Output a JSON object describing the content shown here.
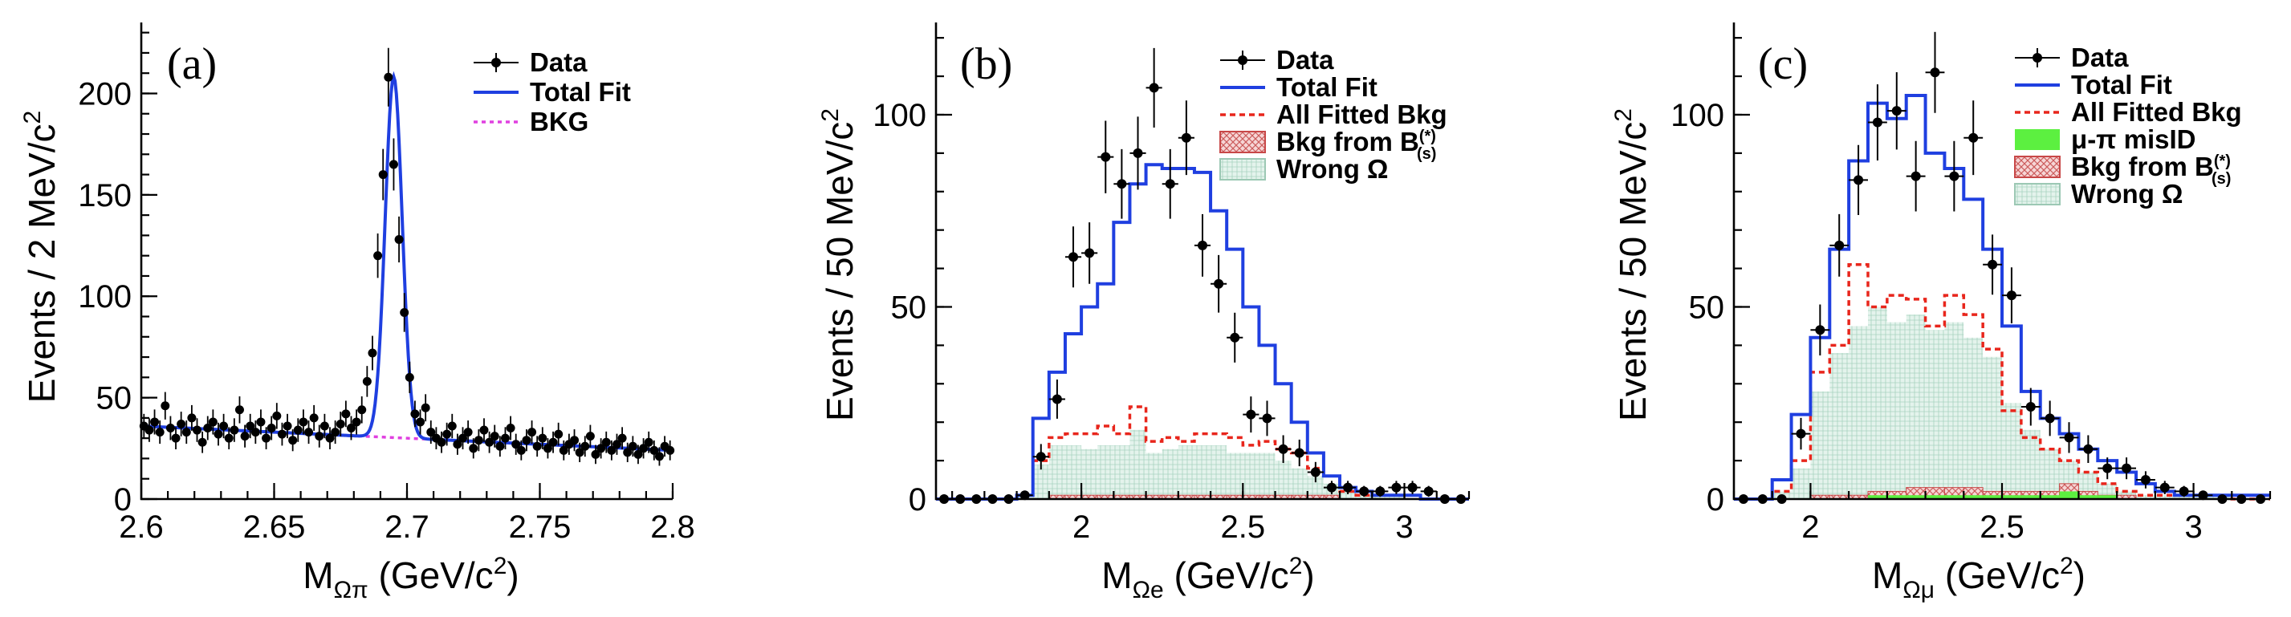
{
  "colors": {
    "data": "#000000",
    "total_fit": "#1f3fe0",
    "bkg_a": "#e040e0",
    "all_fitted": "#e8261c",
    "bkg_b_line": "#c84848",
    "bkg_b_fill": "#f3c8c8",
    "wrong_line": "#9cc8b4",
    "wrong_fill": "#dcefe6",
    "misid": "#5cf040"
  },
  "chart_data": [
    {
      "id": "a",
      "type": "scatter",
      "panel_label": "(a)",
      "xlabel_main": "M",
      "xlabel_sub": "Ωπ",
      "xlabel_rest": "  (GeV/c",
      "xlabel_sup": "2",
      "xlabel_close": ")",
      "ylabel": "Events / 2 MeV/c",
      "ylabel_sup": "2",
      "xlim": [
        2.6,
        2.8
      ],
      "ylim": [
        0,
        235
      ],
      "xticks": [
        2.6,
        2.65,
        2.7,
        2.75,
        2.8
      ],
      "xtick_labels": [
        "2.6",
        "2.65",
        "2.7",
        "2.75",
        "2.8"
      ],
      "yticks": [
        0,
        50,
        100,
        150,
        200
      ],
      "ytick_labels": [
        "0",
        "50",
        "100",
        "150",
        "200"
      ],
      "legend": [
        {
          "key": "data",
          "label": "Data"
        },
        {
          "key": "total",
          "label": "Total Fit"
        },
        {
          "key": "bkg",
          "label": "BKG"
        }
      ],
      "data_x0": 2.601,
      "data_dx": 0.002,
      "data_y": [
        36,
        34,
        38,
        33,
        46,
        35,
        30,
        37,
        33,
        40,
        34,
        28,
        35,
        38,
        32,
        36,
        30,
        34,
        44,
        31,
        36,
        33,
        38,
        30,
        35,
        41,
        32,
        36,
        29,
        34,
        38,
        33,
        40,
        31,
        36,
        30,
        33,
        37,
        42,
        35,
        38,
        44,
        58,
        72,
        120,
        160,
        208,
        165,
        128,
        92,
        60,
        42,
        38,
        45,
        33,
        30,
        28,
        32,
        36,
        27,
        30,
        33,
        25,
        29,
        34,
        28,
        31,
        26,
        30,
        35,
        27,
        24,
        29,
        33,
        26,
        30,
        25,
        28,
        32,
        24,
        27,
        29,
        23,
        26,
        31,
        22,
        25,
        28,
        24,
        27,
        30,
        23,
        26,
        22,
        25,
        28,
        24,
        21,
        26,
        24
      ],
      "fit": {
        "bkg_left": 36,
        "bkg_right": 24,
        "peak_mean": 2.695,
        "peak_amp": 178,
        "peak_sigma": 0.0032
      }
    },
    {
      "id": "b",
      "type": "histogram",
      "panel_label": "(b)",
      "xlabel_main": "M",
      "xlabel_sub": "Ωe",
      "xlabel_rest": " (GeV/c",
      "xlabel_sup": "2",
      "xlabel_close": ")",
      "ylabel": "Events / 50 MeV/c",
      "ylabel_sup": "2",
      "xlim": [
        1.55,
        3.2
      ],
      "ylim": [
        0,
        124
      ],
      "xticks": [
        2,
        2.5,
        3
      ],
      "xtick_labels": [
        "2",
        "2.5",
        "3"
      ],
      "yticks": [
        0,
        50,
        100
      ],
      "ytick_labels": [
        "0",
        "50",
        "100"
      ],
      "legend": [
        {
          "key": "data",
          "label": "Data"
        },
        {
          "key": "total",
          "label": "Total Fit"
        },
        {
          "key": "allbkg",
          "label": "All Fitted Bkg"
        },
        {
          "key": "bbkg",
          "label": "Bkg from B",
          "sup": "(*)",
          "sub": "(s)"
        },
        {
          "key": "wrong",
          "label": "Wrong Ω"
        }
      ],
      "bin_x0": 1.55,
      "bin_w": 0.05,
      "data_y": [
        0,
        0,
        0,
        0,
        0,
        1,
        11,
        26,
        63,
        64,
        89,
        82,
        90,
        107,
        82,
        94,
        66,
        56,
        42,
        22,
        21,
        13,
        12,
        7,
        3,
        3,
        2,
        2,
        3,
        3,
        2,
        0,
        0
      ],
      "total_fit": [
        0,
        0,
        0,
        0,
        0,
        1,
        21,
        33,
        43,
        50,
        56,
        72,
        82,
        87,
        86,
        86,
        85,
        75,
        65,
        50,
        40,
        30,
        20,
        12,
        6,
        3,
        2,
        1,
        1,
        1,
        0,
        0,
        0
      ],
      "all_bkg": [
        0,
        0,
        0,
        0,
        0,
        1,
        10,
        16,
        17,
        17,
        19,
        17,
        24,
        15,
        16,
        15,
        17,
        17,
        16,
        14,
        15,
        13,
        12,
        8,
        6,
        2,
        1,
        1,
        1,
        1,
        0,
        0,
        0
      ],
      "bkg_b": [
        0,
        0,
        0,
        0,
        0,
        0,
        0,
        1,
        1,
        1,
        1,
        1,
        1,
        1,
        1,
        1,
        1,
        1,
        1,
        1,
        1,
        1,
        1,
        1,
        1,
        0,
        0,
        0,
        0,
        0,
        0,
        0,
        0
      ],
      "wrong": [
        0,
        0,
        0,
        0,
        0,
        1,
        9,
        14,
        14,
        13,
        14,
        14,
        18,
        12,
        13,
        14,
        14,
        14,
        12,
        12,
        12,
        10,
        8,
        6,
        4,
        2,
        1,
        1,
        1,
        0,
        0,
        0,
        0
      ]
    },
    {
      "id": "c",
      "type": "histogram",
      "panel_label": "(c)",
      "xlabel_main": "M",
      "xlabel_sub": "Ωμ",
      "xlabel_rest": " (GeV/c",
      "xlabel_sup": "2",
      "xlabel_close": ")",
      "ylabel": "Events / 50 MeV/c",
      "ylabel_sup": "2",
      "xlim": [
        1.8,
        3.2
      ],
      "ylim": [
        0,
        124
      ],
      "xticks": [
        2,
        2.5,
        3
      ],
      "xtick_labels": [
        "2",
        "2.5",
        "3"
      ],
      "yticks": [
        0,
        50,
        100
      ],
      "ytick_labels": [
        "0",
        "50",
        "100"
      ],
      "legend": [
        {
          "key": "data",
          "label": "Data"
        },
        {
          "key": "total",
          "label": "Total Fit"
        },
        {
          "key": "allbkg",
          "label": "All Fitted Bkg"
        },
        {
          "key": "misid",
          "label": "μ-π misID"
        },
        {
          "key": "bbkg",
          "label": "Bkg from B",
          "sup": "(*)",
          "sub": "(s)"
        },
        {
          "key": "wrong",
          "label": "Wrong Ω"
        }
      ],
      "bin_x0": 1.8,
      "bin_w": 0.05,
      "data_y": [
        0,
        0,
        0,
        17,
        44,
        66,
        83,
        98,
        101,
        84,
        111,
        84,
        94,
        61,
        53,
        24,
        21,
        16,
        13,
        8,
        8,
        5,
        3,
        2,
        1,
        0,
        0,
        0
      ],
      "total_fit": [
        0,
        0,
        5,
        22,
        42,
        65,
        88,
        103,
        99,
        105,
        90,
        86,
        78,
        65,
        45,
        28,
        21,
        17,
        13,
        10,
        7,
        4,
        2,
        1,
        1,
        1,
        1,
        1
      ],
      "all_bkg": [
        0,
        0,
        2,
        10,
        33,
        40,
        61,
        50,
        53,
        52,
        45,
        53,
        48,
        39,
        23,
        16,
        13,
        10,
        7,
        4,
        2,
        1,
        1,
        1,
        1,
        1,
        0,
        0
      ],
      "misid": [
        0,
        0,
        0,
        0,
        0,
        0,
        0,
        1,
        1,
        1,
        1,
        1,
        1,
        1,
        1,
        1,
        1,
        2,
        1,
        1,
        0,
        0,
        0,
        0,
        0,
        0,
        0,
        0
      ],
      "bkg_b": [
        0,
        0,
        0,
        0,
        1,
        1,
        1,
        2,
        2,
        3,
        3,
        3,
        3,
        2,
        2,
        2,
        2,
        4,
        2,
        1,
        1,
        0,
        0,
        0,
        0,
        0,
        0,
        0
      ],
      "wrong": [
        0,
        0,
        2,
        8,
        28,
        38,
        45,
        50,
        46,
        48,
        44,
        46,
        42,
        37,
        25,
        18,
        13,
        10,
        7,
        4,
        2,
        1,
        1,
        1,
        1,
        1,
        0,
        0
      ]
    }
  ]
}
